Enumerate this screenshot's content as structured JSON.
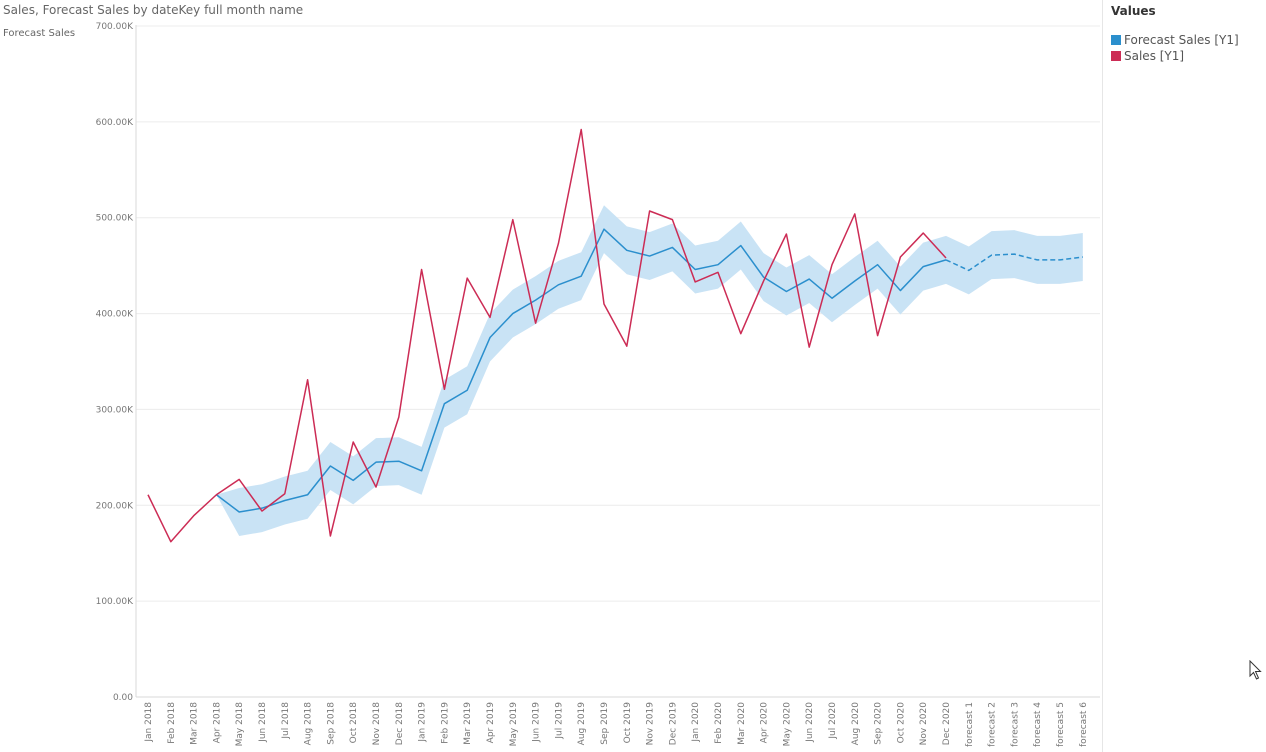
{
  "title": "Sales, Forecast Sales by dateKey full month name",
  "y_axis_title": "Forecast Sales",
  "legend": {
    "title": "Values",
    "items": [
      {
        "label": "Forecast Sales [Y1]",
        "color": "#2b8fcd"
      },
      {
        "label": "Sales [Y1]",
        "color": "#cc2c55"
      }
    ]
  },
  "chart_data": {
    "type": "line",
    "title": "Sales, Forecast Sales by dateKey full month name",
    "ylabel": "Forecast Sales",
    "xlabel": "",
    "ylim": [
      0,
      700000
    ],
    "yticks": [
      0,
      100000,
      200000,
      300000,
      400000,
      500000,
      600000,
      700000
    ],
    "ytick_labels": [
      "0.00",
      "100.00K",
      "200.00K",
      "300.00K",
      "400.00K",
      "500.00K",
      "600.00K",
      "700.00K"
    ],
    "grid": true,
    "legend_position": "right",
    "categories": [
      "Jan 2018",
      "Feb 2018",
      "Mar 2018",
      "Apr 2018",
      "May 2018",
      "Jun 2018",
      "Jul 2018",
      "Aug 2018",
      "Sep 2018",
      "Oct 2018",
      "Nov 2018",
      "Dec 2018",
      "Jan 2019",
      "Feb 2019",
      "Mar 2019",
      "Apr 2019",
      "May 2019",
      "Jun 2019",
      "Jul 2019",
      "Aug 2019",
      "Sep 2019",
      "Oct 2019",
      "Nov 2019",
      "Dec 2019",
      "Jan 2020",
      "Feb 2020",
      "Mar 2020",
      "Apr 2020",
      "May 2020",
      "Jun 2020",
      "Jul 2020",
      "Aug 2020",
      "Sep 2020",
      "Oct 2020",
      "Nov 2020",
      "Dec 2020",
      "forecast 1",
      "forecast 2",
      "forecast 3",
      "forecast 4",
      "forecast 5",
      "forecast 6"
    ],
    "series": [
      {
        "name": "Forecast Sales [Y1]",
        "color": "#2b8fcd",
        "values": [
          null,
          null,
          null,
          211000,
          193000,
          197000,
          205000,
          211000,
          241000,
          226000,
          245000,
          246000,
          236000,
          306000,
          320000,
          375000,
          400000,
          414000,
          430000,
          439000,
          488000,
          466000,
          460000,
          469000,
          446000,
          451000,
          471000,
          438000,
          423000,
          436000,
          416000,
          434000,
          451000,
          424000,
          449000,
          456000,
          445000,
          461000,
          462000,
          456000,
          456000,
          459000
        ],
        "lower": [
          null,
          null,
          null,
          211000,
          168000,
          172000,
          180000,
          186000,
          216000,
          201000,
          220000,
          221000,
          211000,
          281000,
          295000,
          350000,
          375000,
          389000,
          405000,
          414000,
          463000,
          441000,
          435000,
          444000,
          421000,
          426000,
          446000,
          413000,
          398000,
          411000,
          391000,
          409000,
          426000,
          399000,
          424000,
          431000,
          420000,
          436000,
          437000,
          431000,
          431000,
          434000
        ],
        "upper": [
          null,
          null,
          null,
          211000,
          218000,
          222000,
          230000,
          236000,
          266000,
          251000,
          270000,
          271000,
          261000,
          331000,
          345000,
          400000,
          425000,
          439000,
          455000,
          464000,
          513000,
          491000,
          485000,
          494000,
          471000,
          476000,
          496000,
          463000,
          448000,
          461000,
          441000,
          459000,
          476000,
          449000,
          474000,
          481000,
          470000,
          486000,
          487000,
          481000,
          481000,
          484000
        ],
        "forecast_from_index": 35
      },
      {
        "name": "Sales [Y1]",
        "color": "#cc2c55",
        "values": [
          211000,
          162000,
          189000,
          211000,
          227000,
          194000,
          212000,
          331000,
          168000,
          266000,
          219000,
          292000,
          446000,
          321000,
          437000,
          396000,
          498000,
          390000,
          473000,
          592000,
          410000,
          366000,
          507000,
          498000,
          433000,
          443000,
          379000,
          434000,
          483000,
          365000,
          451000,
          504000,
          377000,
          459000,
          484000,
          458000,
          null,
          null,
          null,
          null,
          null,
          null
        ]
      }
    ],
    "band_color": "#c9e3f5"
  }
}
